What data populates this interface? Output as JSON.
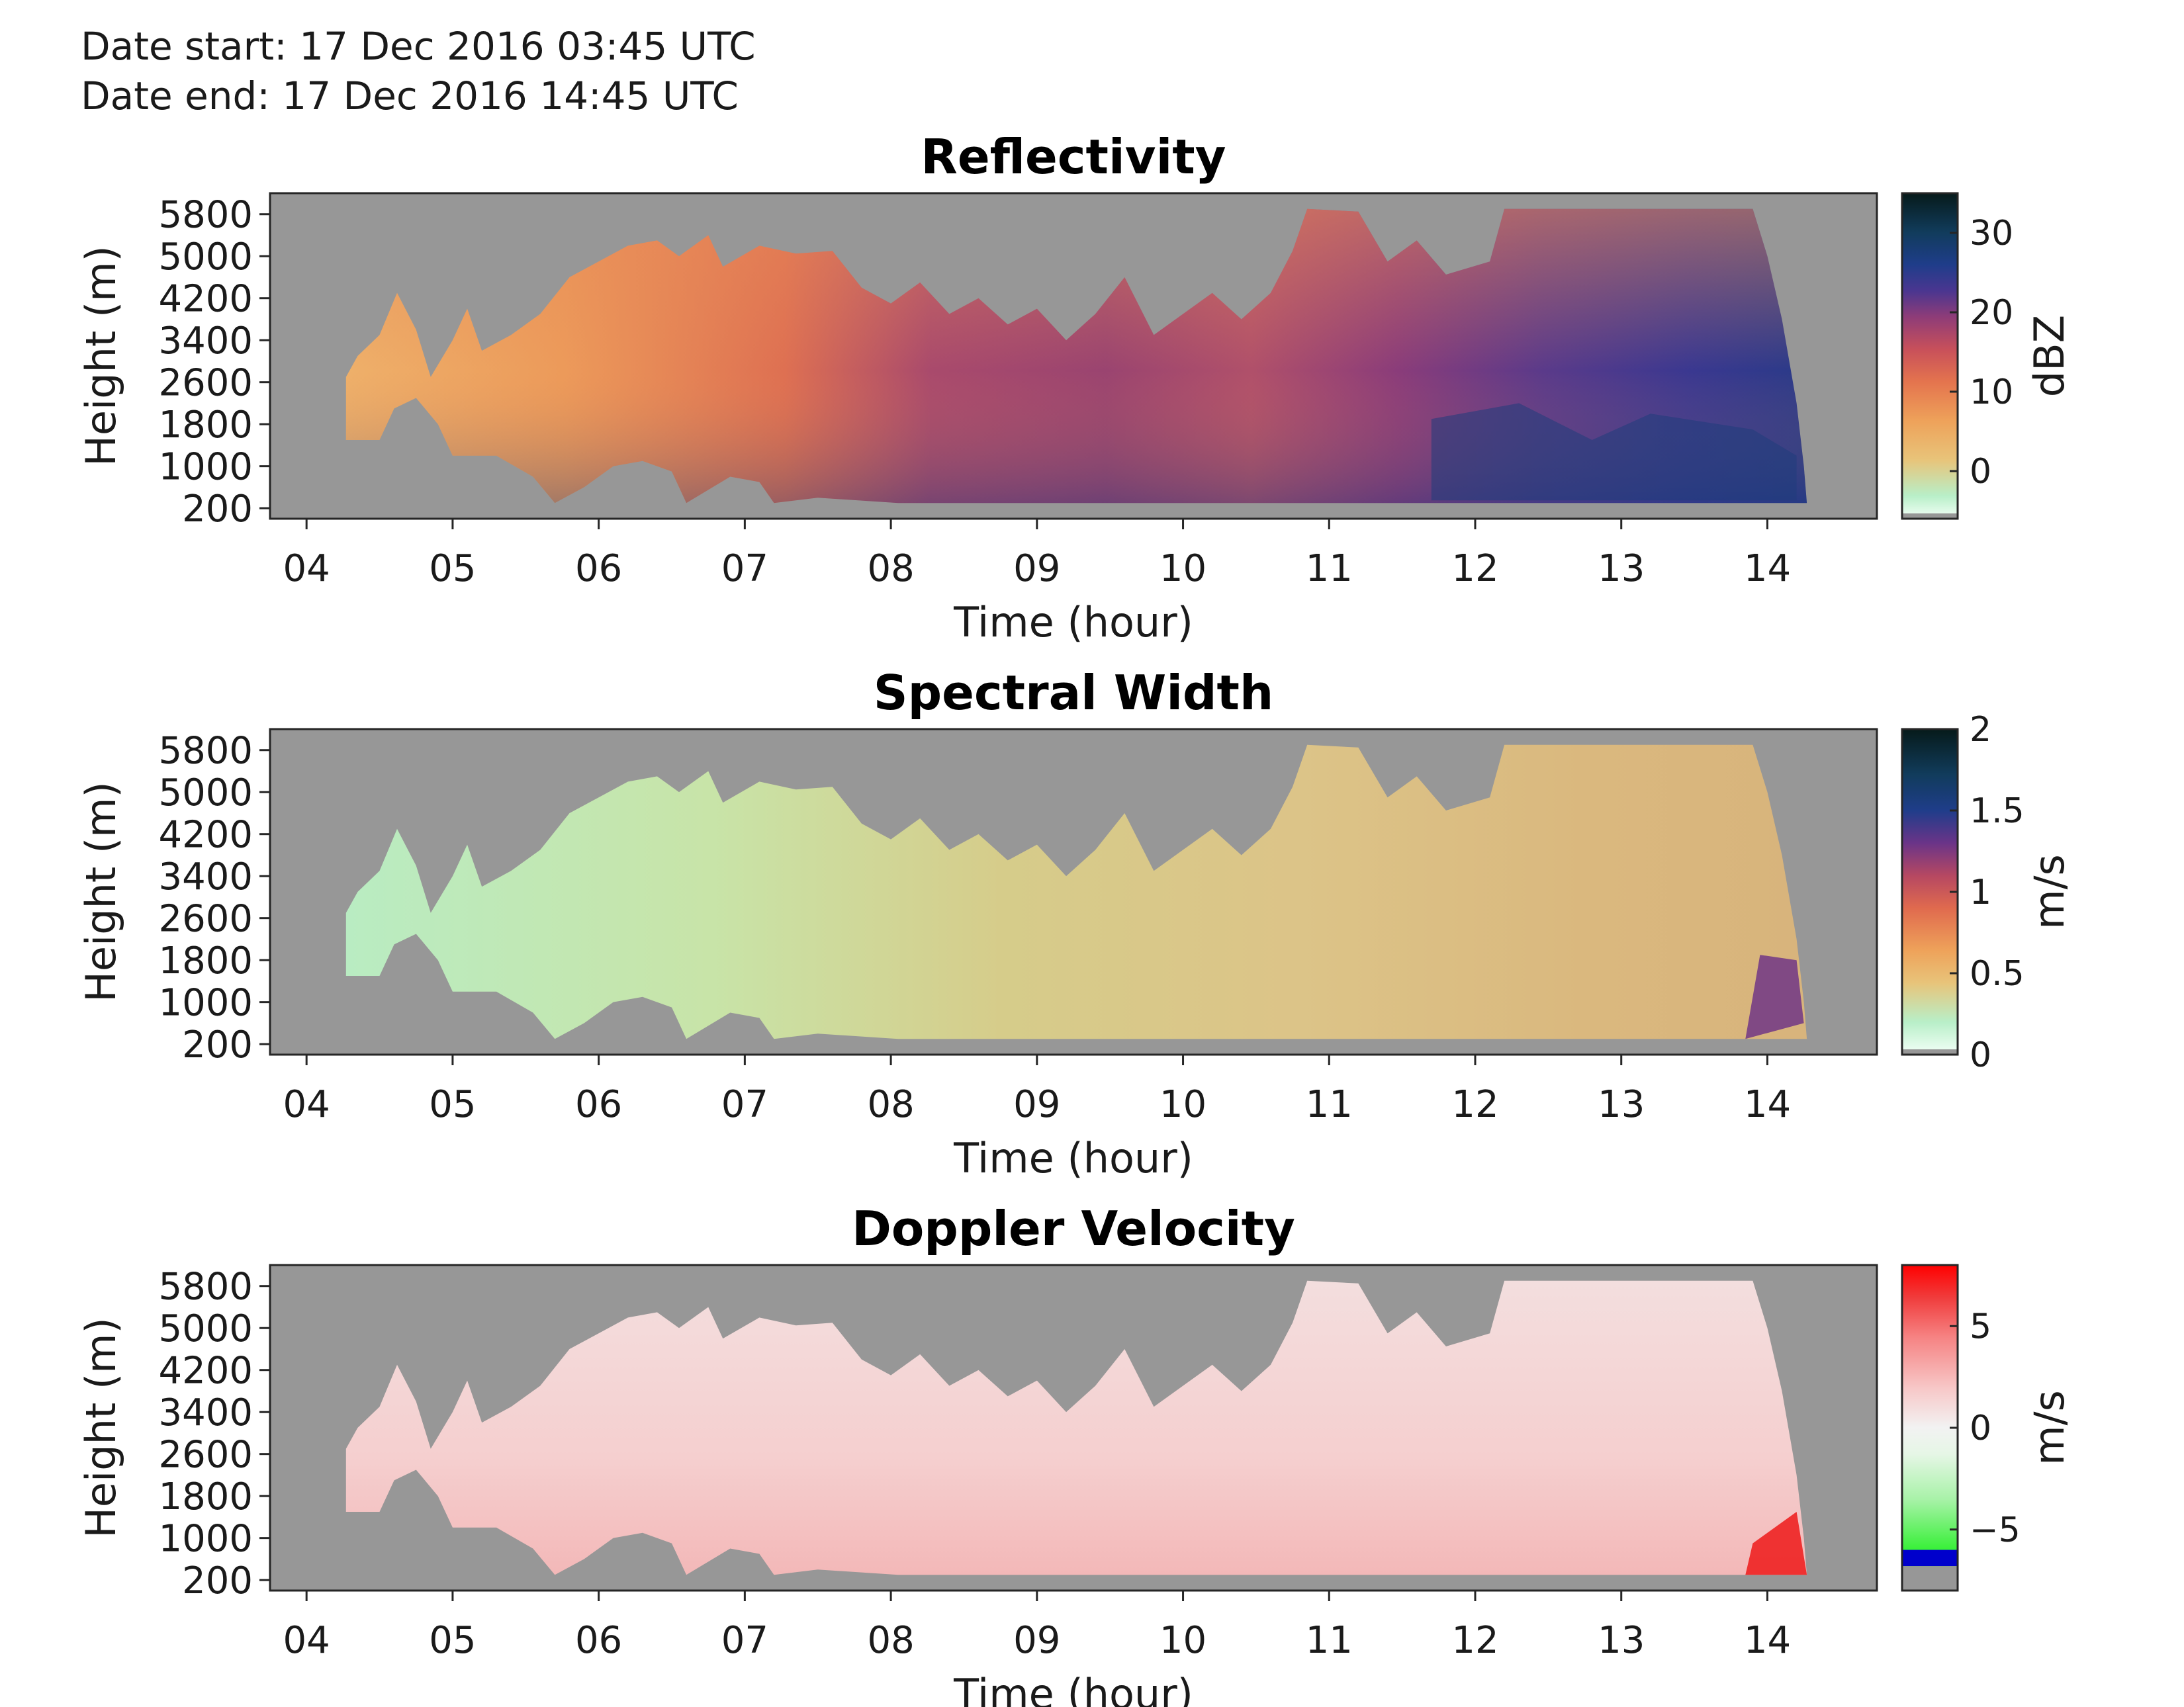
{
  "header": {
    "date_start": "Date start: 17 Dec 2016 03:45 UTC",
    "date_end": "Date end:  17 Dec 2016 14:45 UTC"
  },
  "chart_data": [
    {
      "type": "heatmap",
      "title": "Reflectivity",
      "xlabel": "Time (hour)",
      "ylabel": "Height (m)",
      "x_ticks": [
        "04",
        "05",
        "06",
        "07",
        "08",
        "09",
        "10",
        "11",
        "12",
        "13",
        "14"
      ],
      "y_ticks": [
        "200",
        "1000",
        "1800",
        "2600",
        "3400",
        "4200",
        "5000",
        "5800"
      ],
      "xlim": [
        3.75,
        14.75
      ],
      "ylim": [
        0,
        6200
      ],
      "colorbar": {
        "label": "dBZ",
        "ticks": [
          "0",
          "10",
          "20",
          "30"
        ],
        "range": [
          -6,
          35
        ]
      },
      "no_data_color": "#979797"
    },
    {
      "type": "heatmap",
      "title": "Spectral Width",
      "xlabel": "Time (hour)",
      "ylabel": "Height (m)",
      "x_ticks": [
        "04",
        "05",
        "06",
        "07",
        "08",
        "09",
        "10",
        "11",
        "12",
        "13",
        "14"
      ],
      "y_ticks": [
        "200",
        "1000",
        "1800",
        "2600",
        "3400",
        "4200",
        "5000",
        "5800"
      ],
      "xlim": [
        3.75,
        14.75
      ],
      "ylim": [
        0,
        6200
      ],
      "colorbar": {
        "label": "m/s",
        "ticks": [
          "0",
          "0.5",
          "1",
          "1.5",
          "2"
        ],
        "range": [
          0,
          2
        ]
      },
      "no_data_color": "#979797"
    },
    {
      "type": "heatmap",
      "title": "Doppler Velocity",
      "xlabel": "Time (hour)",
      "ylabel": "Height (m)",
      "x_ticks": [
        "04",
        "05",
        "06",
        "07",
        "08",
        "09",
        "10",
        "11",
        "12",
        "13",
        "14"
      ],
      "y_ticks": [
        "200",
        "1000",
        "1800",
        "2600",
        "3400",
        "4200",
        "5000",
        "5800"
      ],
      "xlim": [
        3.75,
        14.75
      ],
      "ylim": [
        0,
        6200
      ],
      "colorbar": {
        "label": "m/s",
        "ticks": [
          "5",
          "0",
          "−5"
        ],
        "range": [
          -8,
          8
        ]
      },
      "no_data_color": "#979797"
    }
  ]
}
